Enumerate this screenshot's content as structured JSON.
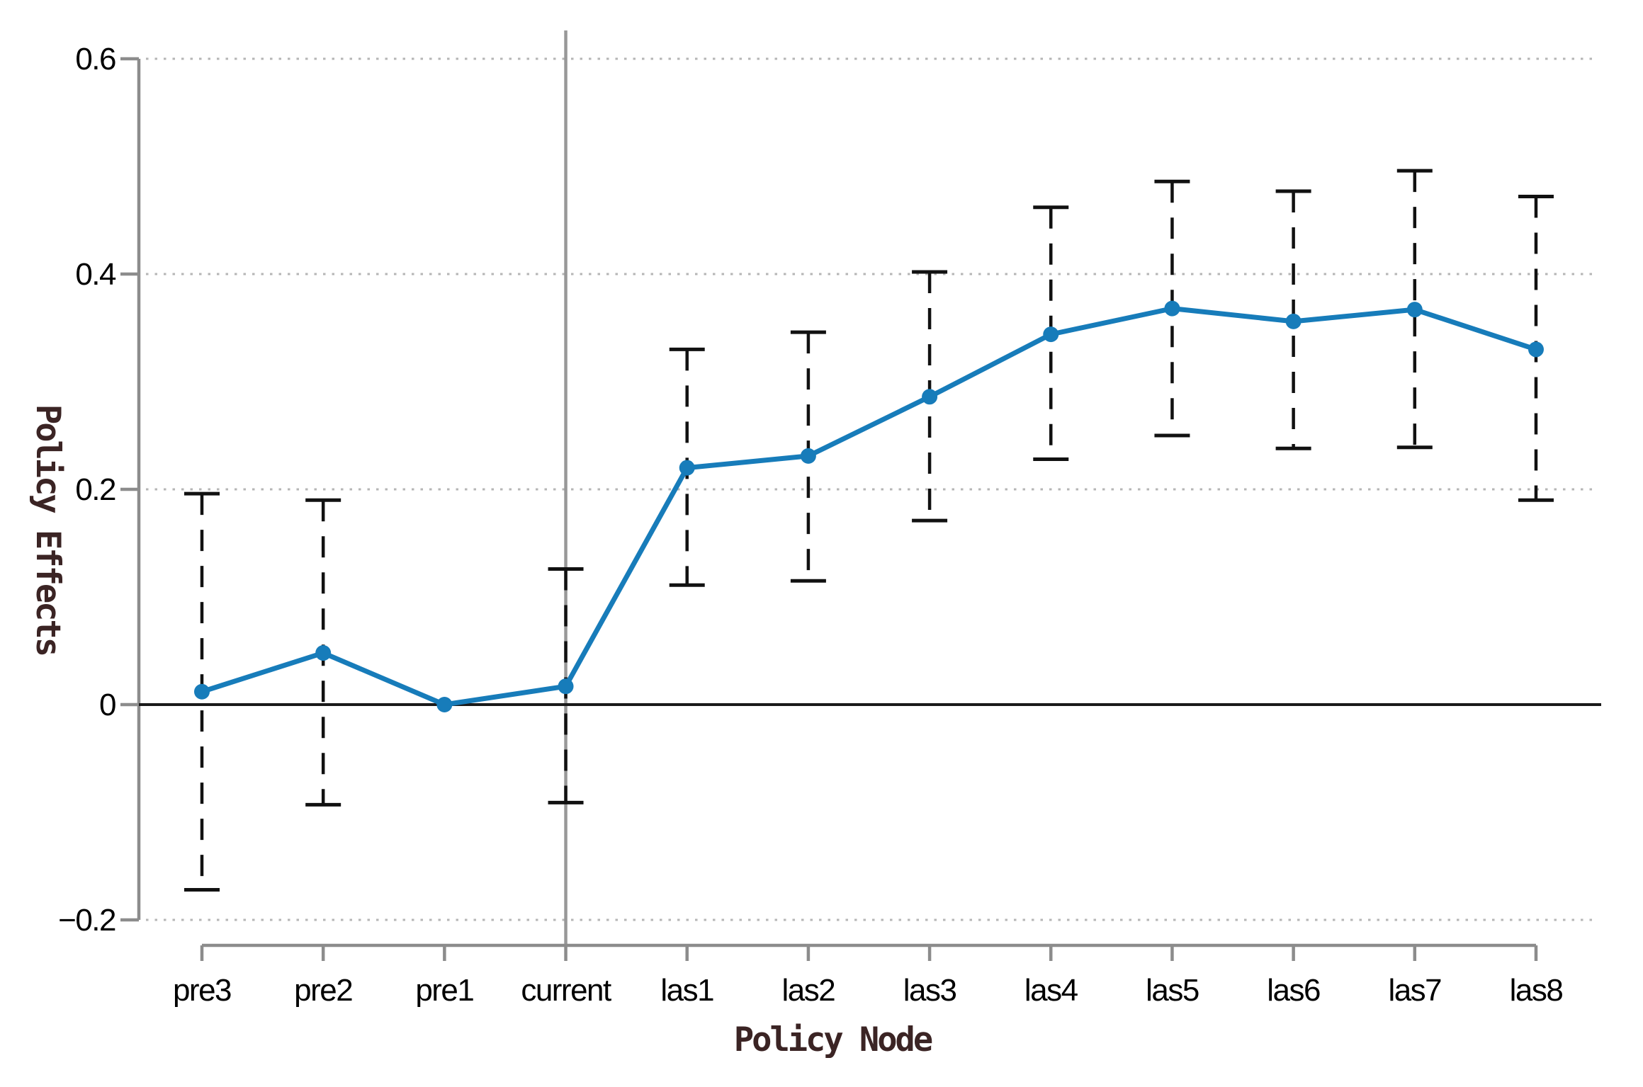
{
  "chart_data": {
    "type": "line",
    "title": "",
    "xlabel": "Policy Node",
    "ylabel": "Policy Effects",
    "legend": "none",
    "grid": "horizontal-dotted",
    "marker": "circle",
    "error_bar_style": "dashed-with-caps",
    "reference_line_y": 0,
    "vertical_reference_category": "current",
    "ylim": [
      -0.27,
      0.63
    ],
    "yticks": [
      {
        "value": 0.6,
        "label": "0.6"
      },
      {
        "value": 0.4,
        "label": "0.4"
      },
      {
        "value": 0.2,
        "label": "0.2"
      },
      {
        "value": 0.0,
        "label": "0"
      },
      {
        "value": -0.2,
        "label": "−0.2"
      }
    ],
    "categories": [
      "pre3",
      "pre2",
      "pre1",
      "current",
      "las1",
      "las2",
      "las3",
      "las4",
      "las5",
      "las6",
      "las7",
      "las8"
    ],
    "series": [
      {
        "name": "Policy Effects",
        "points": [
          {
            "label": "pre3",
            "value": 0.012,
            "ci_low": -0.172,
            "ci_high": 0.196
          },
          {
            "label": "pre2",
            "value": 0.048,
            "ci_low": -0.093,
            "ci_high": 0.19
          },
          {
            "label": "pre1",
            "value": 0.0,
            "ci_low": null,
            "ci_high": null
          },
          {
            "label": "current",
            "value": 0.017,
            "ci_low": -0.091,
            "ci_high": 0.126
          },
          {
            "label": "las1",
            "value": 0.22,
            "ci_low": 0.111,
            "ci_high": 0.33
          },
          {
            "label": "las2",
            "value": 0.231,
            "ci_low": 0.115,
            "ci_high": 0.346
          },
          {
            "label": "las3",
            "value": 0.286,
            "ci_low": 0.171,
            "ci_high": 0.402
          },
          {
            "label": "las4",
            "value": 0.344,
            "ci_low": 0.228,
            "ci_high": 0.462
          },
          {
            "label": "las5",
            "value": 0.368,
            "ci_low": 0.25,
            "ci_high": 0.486
          },
          {
            "label": "las6",
            "value": 0.356,
            "ci_low": 0.238,
            "ci_high": 0.477
          },
          {
            "label": "las7",
            "value": 0.367,
            "ci_low": 0.239,
            "ci_high": 0.496
          },
          {
            "label": "las8",
            "value": 0.33,
            "ci_low": 0.19,
            "ci_high": 0.472
          }
        ]
      }
    ],
    "colors": {
      "line": "#177cba",
      "marker": "#177cba",
      "error_bar": "#111111",
      "zero_line": "#1a1a1a",
      "axis_line": "#8c8c8c",
      "vline": "#989898",
      "gridline": "#b5b5b5",
      "tick_label": "#000000",
      "axis_title": "#3b2424",
      "background": "#ffffff"
    }
  }
}
